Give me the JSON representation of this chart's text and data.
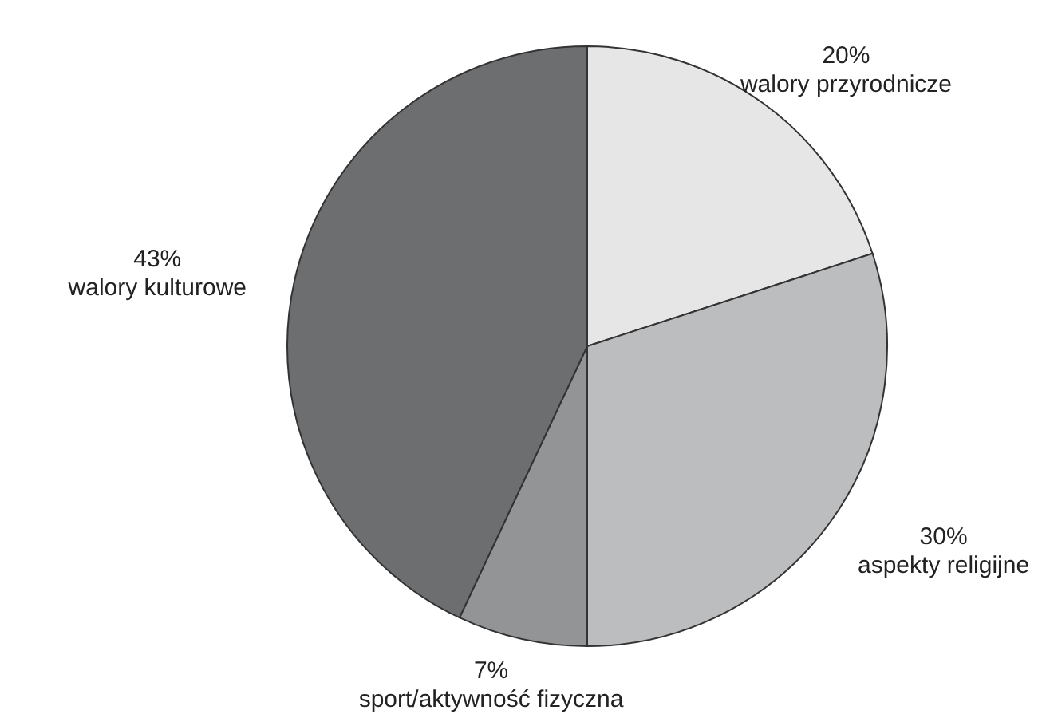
{
  "chart_data": {
    "type": "pie",
    "categories": [
      "walory przyrodnicze",
      "aspekty religijne",
      "sport/aktywność fizyczna",
      "walory kulturowe"
    ],
    "values": [
      20,
      30,
      7,
      43
    ],
    "value_labels": [
      "20%",
      "30%",
      "7%",
      "43%"
    ],
    "colors": [
      "#e6e6e7",
      "#bcbdbf",
      "#939496",
      "#6d6e70"
    ],
    "legend": false
  }
}
